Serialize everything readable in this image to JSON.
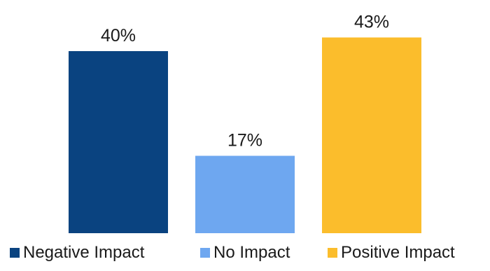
{
  "chart_data": {
    "type": "bar",
    "categories": [
      "Negative Impact",
      "No Impact",
      "Positive Impact"
    ],
    "values": [
      40,
      17,
      43
    ],
    "data_labels": [
      "40%",
      "17%",
      "43%"
    ],
    "colors": [
      "#0a4380",
      "#6ea7f0",
      "#fbbd2c"
    ],
    "legend": {
      "position": "bottom",
      "entries": [
        "Negative Impact",
        "No Impact",
        "Positive Impact"
      ]
    },
    "ylim": [
      0,
      45
    ],
    "grid": false,
    "title": "",
    "xlabel": "",
    "ylabel": ""
  }
}
